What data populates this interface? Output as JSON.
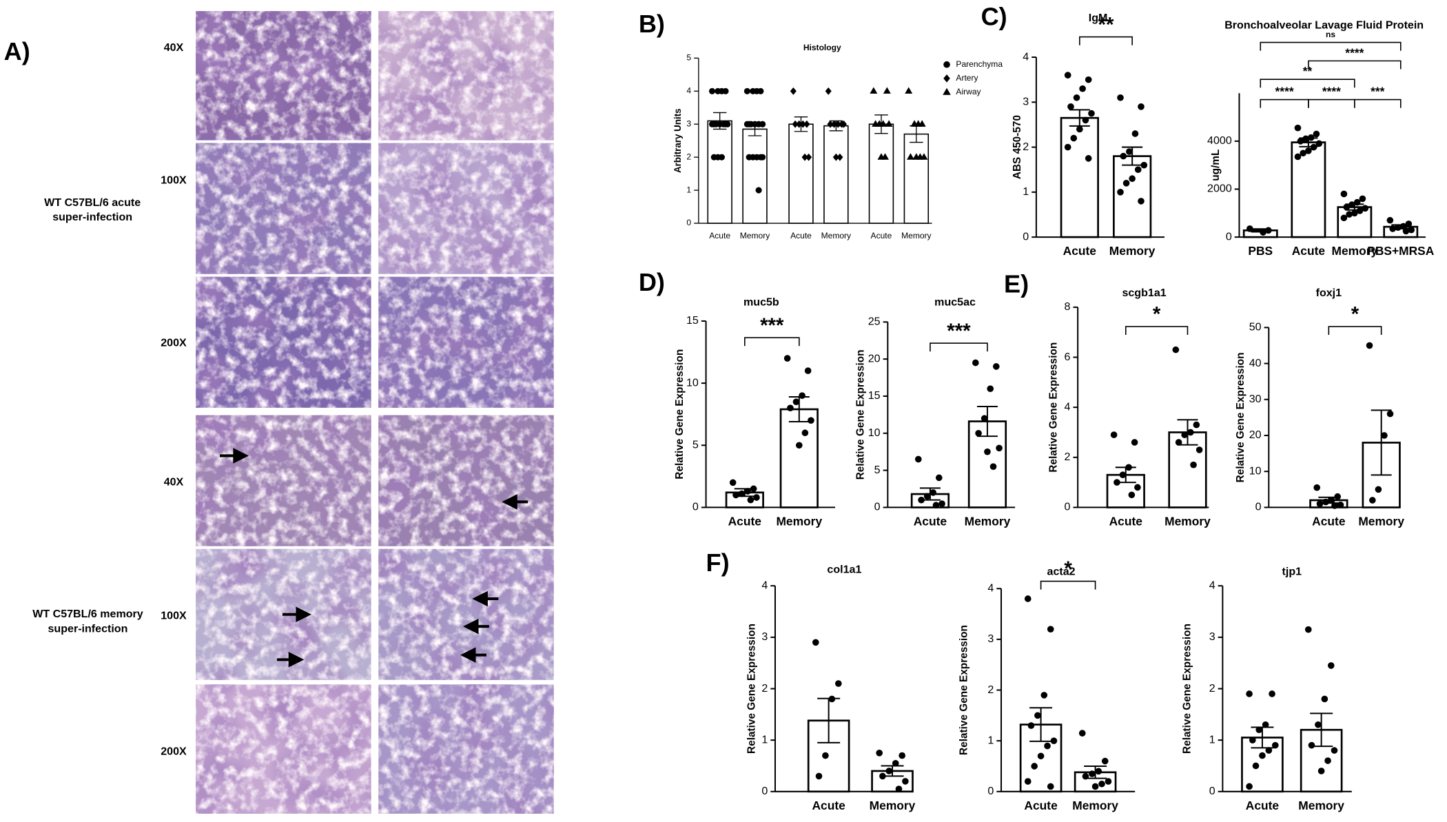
{
  "panel_labels": [
    "A)",
    "B)",
    "C)",
    "D)",
    "E)",
    "F)"
  ],
  "histology": {
    "magnifications": [
      "40X",
      "100X",
      "200X",
      "40X",
      "100X",
      "200X"
    ],
    "groups": [
      [
        "WT C57BL/6 acute",
        "super-infection"
      ],
      [
        "WT C57BL/6 memory",
        "super-infection"
      ]
    ]
  },
  "chart_data": [
    {
      "type": "bar",
      "title": "Histology",
      "ylabel": "Arbitrary Units",
      "ylim": [
        0,
        5
      ],
      "yticks": [
        0,
        1,
        2,
        3,
        4,
        5
      ],
      "categories": [
        "Acute",
        "Memory"
      ],
      "legend": "right",
      "color": "#000000",
      "series": [
        {
          "name": "Parenchyma",
          "marker": "circle",
          "values": [
            3.1,
            2.85
          ],
          "errors": [
            0.25,
            0.2
          ],
          "points": [
            [
              4,
              4,
              4,
              4,
              3,
              3,
              3,
              3,
              3,
              3,
              3,
              2,
              2,
              2
            ],
            [
              4,
              4,
              4,
              4,
              3,
              3,
              3,
              3,
              3,
              3,
              2,
              2,
              2,
              2,
              2,
              1
            ]
          ]
        },
        {
          "name": "Artery",
          "marker": "diamond",
          "values": [
            3.0,
            2.95
          ],
          "errors": [
            0.22,
            0.15
          ],
          "points": [
            [
              4,
              3,
              3,
              3,
              3,
              2,
              2
            ],
            [
              4,
              3,
              3,
              3,
              3,
              3,
              2,
              2
            ]
          ]
        },
        {
          "name": "Airway",
          "marker": "triangle",
          "values": [
            3.0,
            2.7
          ],
          "errors": [
            0.28,
            0.25
          ],
          "points": [
            [
              4,
              4,
              3,
              3,
              3,
              3,
              2,
              2
            ],
            [
              4,
              3,
              3,
              3,
              2,
              2,
              2,
              2
            ]
          ]
        }
      ]
    },
    {
      "type": "bar",
      "title": "IgM",
      "ylabel": "ABS 450-570",
      "ylim": [
        0,
        4
      ],
      "yticks": [
        0,
        1,
        2,
        3,
        4
      ],
      "color": "#000000",
      "categories": [
        "Acute",
        "Memory"
      ],
      "values": [
        2.65,
        1.8
      ],
      "errors": [
        0.18,
        0.2
      ],
      "points": [
        [
          3.6,
          3.5,
          3.3,
          3.1,
          2.9,
          2.75,
          2.6,
          2.4,
          2.2,
          2.0,
          1.75
        ],
        [
          3.1,
          2.9,
          2.3,
          1.9,
          1.8,
          1.6,
          1.5,
          1.3,
          1.2,
          1.0,
          0.8
        ]
      ],
      "significance": [
        {
          "from": 0,
          "to": 1,
          "label": "**"
        }
      ]
    },
    {
      "type": "bar",
      "title": "Bronchoalveolar Lavage Fluid Protein",
      "ylabel": "ug/mL",
      "ylim": [
        0,
        6000
      ],
      "yticks": [
        0,
        2000,
        4000
      ],
      "color": "#000000",
      "categories": [
        "PBS",
        "Acute",
        "Memory",
        "PBS+MRSA"
      ],
      "values": [
        280,
        3950,
        1250,
        430
      ],
      "errors": [
        60,
        180,
        120,
        80
      ],
      "points": [
        [
          350,
          280,
          200
        ],
        [
          4550,
          4300,
          4150,
          4100,
          4000,
          3900,
          3750,
          3600,
          3500,
          3350
        ],
        [
          1800,
          1600,
          1450,
          1350,
          1250,
          1200,
          1100,
          1000,
          950,
          800
        ],
        [
          700,
          550,
          450,
          400,
          350,
          300,
          250
        ]
      ],
      "significance": [
        {
          "from": 0,
          "to": 1,
          "label": "****"
        },
        {
          "from": 1,
          "to": 2,
          "label": "****"
        },
        {
          "from": 2,
          "to": 3,
          "label": "***"
        },
        {
          "from": 0,
          "to": 2,
          "label": "**"
        },
        {
          "from": 1,
          "to": 3,
          "label": "****"
        },
        {
          "from": 0,
          "to": 3,
          "label": "ns"
        }
      ]
    },
    {
      "type": "bar",
      "title": "muc5b",
      "ylabel": "Relative Gene Expression",
      "ylim": [
        0,
        15
      ],
      "yticks": [
        0,
        5,
        10,
        15
      ],
      "color": "#000000",
      "categories": [
        "Acute",
        "Memory"
      ],
      "values": [
        1.2,
        7.9
      ],
      "errors": [
        0.3,
        1.0
      ],
      "points": [
        [
          2.0,
          1.5,
          1.3,
          1.1,
          1.0,
          0.8,
          0.6
        ],
        [
          12,
          11,
          9,
          8.5,
          8,
          7,
          6,
          5
        ]
      ],
      "significance": [
        {
          "from": 0,
          "to": 1,
          "label": "***"
        }
      ]
    },
    {
      "type": "bar",
      "title": "muc5ac",
      "ylabel": "Relative Gene Expression",
      "ylim": [
        0,
        25
      ],
      "yticks": [
        0,
        5,
        10,
        15,
        20,
        25
      ],
      "color": "#000000",
      "categories": [
        "Acute",
        "Memory"
      ],
      "values": [
        1.8,
        11.6
      ],
      "errors": [
        0.8,
        2.0
      ],
      "points": [
        [
          6.5,
          4,
          2,
          1.5,
          1,
          0.5,
          0.3
        ],
        [
          19.5,
          19,
          16,
          12,
          10,
          8,
          5.5,
          7.5
        ]
      ],
      "significance": [
        {
          "from": 0,
          "to": 1,
          "label": "***"
        }
      ]
    },
    {
      "type": "bar",
      "title": "scgb1a1",
      "ylabel": "Relative Gene Expression",
      "ylim": [
        0,
        8
      ],
      "yticks": [
        0,
        2,
        4,
        6,
        8
      ],
      "color": "#000000",
      "categories": [
        "Acute",
        "Memory"
      ],
      "values": [
        1.3,
        3.0
      ],
      "errors": [
        0.3,
        0.5
      ],
      "points": [
        [
          2.9,
          2.6,
          1.6,
          1.3,
          1.0,
          0.8,
          0.5
        ],
        [
          6.3,
          3.3,
          3.0,
          2.9,
          2.6,
          2.3,
          1.7
        ]
      ],
      "significance": [
        {
          "from": 0,
          "to": 1,
          "label": "*"
        }
      ]
    },
    {
      "type": "bar",
      "title": "foxj1",
      "ylabel": "Relative Gene Expression",
      "ylim": [
        0,
        50
      ],
      "yticks": [
        0,
        10,
        20,
        30,
        40,
        50
      ],
      "color": "#000000",
      "categories": [
        "Acute",
        "Memory"
      ],
      "values": [
        2,
        18
      ],
      "errors": [
        0.8,
        9
      ],
      "points": [
        [
          5.5,
          3,
          2,
          1.5,
          1,
          0.7,
          0.5
        ],
        [
          45,
          26,
          20,
          5,
          2
        ]
      ],
      "significance": [
        {
          "from": 0,
          "to": 1,
          "label": "*"
        }
      ]
    },
    {
      "type": "bar",
      "title": "col1a1",
      "ylabel": "Relative Gene Expression",
      "ylim": [
        0,
        4
      ],
      "yticks": [
        0,
        1,
        2,
        3,
        4
      ],
      "color": "#000000",
      "categories": [
        "Acute",
        "Memory"
      ],
      "values": [
        1.38,
        0.4
      ],
      "errors": [
        0.43,
        0.1
      ],
      "points": [
        [
          2.9,
          2.1,
          1.8,
          0.7,
          0.3
        ],
        [
          0.75,
          0.7,
          0.55,
          0.4,
          0.3,
          0.2,
          0.05
        ]
      ]
    },
    {
      "type": "bar",
      "title": "acta2",
      "ylabel": "Relative Gene Expression",
      "ylim": [
        0,
        4
      ],
      "yticks": [
        0,
        1,
        2,
        3,
        4
      ],
      "color": "#000000",
      "categories": [
        "Acute",
        "Memory"
      ],
      "values": [
        1.32,
        0.38
      ],
      "errors": [
        0.33,
        0.12
      ],
      "points": [
        [
          3.8,
          3.2,
          1.9,
          1.5,
          1.3,
          1.0,
          0.9,
          0.7,
          0.5,
          0.2,
          0.1
        ],
        [
          1.15,
          0.6,
          0.4,
          0.35,
          0.3,
          0.2,
          0.15,
          0.1
        ]
      ],
      "significance": [
        {
          "from": 0,
          "to": 1,
          "label": "*"
        }
      ]
    },
    {
      "type": "bar",
      "title": "tjp1",
      "ylabel": "Relative Gene Expression",
      "ylim": [
        0,
        4
      ],
      "yticks": [
        0,
        1,
        2,
        3,
        4
      ],
      "color": "#000000",
      "categories": [
        "Acute",
        "Memory"
      ],
      "values": [
        1.05,
        1.2
      ],
      "errors": [
        0.2,
        0.32
      ],
      "points": [
        [
          1.9,
          1.9,
          1.3,
          1.2,
          1.0,
          0.9,
          0.8,
          0.7,
          0.5,
          0.1
        ],
        [
          3.15,
          2.45,
          1.8,
          1.3,
          0.9,
          0.8,
          0.6,
          0.4
        ]
      ]
    }
  ]
}
